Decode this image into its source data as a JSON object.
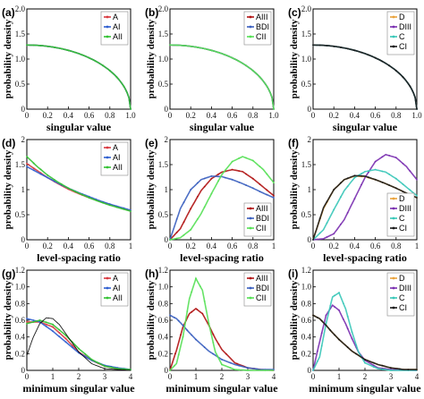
{
  "figure": {
    "ylabel": "probability density",
    "xlabels": {
      "row1": "singular value",
      "row2": "level-spacing ratio",
      "row3": "minimum singular value"
    }
  },
  "colors": {
    "A": "#d9383f",
    "AI": "#2f5fd0",
    "AII": "#33c233",
    "AIII": "#b01212",
    "BDI": "#3a5fbf",
    "CII": "#55e055",
    "D": "#e9a23b",
    "DIII": "#7a2fb0",
    "C": "#39c7b8",
    "CI": "#1a1a1a"
  },
  "chart_data": [
    {
      "id": "a",
      "label": "(a)",
      "type": "line",
      "xlabel": "singular value",
      "ylabel": "probability density",
      "xlim": [
        0,
        1
      ],
      "ylim": [
        0,
        2
      ],
      "xticks": [
        "0",
        "0.2",
        "0.4",
        "0.6",
        "0.8",
        "1.0"
      ],
      "yticks": [
        "0",
        "0.5",
        "1.0",
        "1.5",
        "2.0"
      ],
      "legend": [
        "A",
        "AI",
        "AII"
      ],
      "legend_position": "top-right",
      "series": [
        {
          "name": "A",
          "kind": "quarter",
          "amp": 1.28
        },
        {
          "name": "AI",
          "kind": "quarter",
          "amp": 1.28
        },
        {
          "name": "AII",
          "kind": "quarter",
          "amp": 1.28
        }
      ]
    },
    {
      "id": "b",
      "label": "(b)",
      "type": "line",
      "xlabel": "singular value",
      "ylabel": "probability density",
      "xlim": [
        0,
        1
      ],
      "ylim": [
        0,
        2
      ],
      "xticks": [
        "0",
        "0.2",
        "0.4",
        "0.6",
        "0.8",
        "1.0"
      ],
      "yticks": [
        "0",
        "0.5",
        "1.0",
        "1.5",
        "2.0"
      ],
      "legend": [
        "AIII",
        "BDI",
        "CII"
      ],
      "legend_position": "top-right",
      "series": [
        {
          "name": "AIII",
          "kind": "quarter",
          "amp": 1.28
        },
        {
          "name": "BDI",
          "kind": "quarter",
          "amp": 1.28
        },
        {
          "name": "CII",
          "kind": "quarter",
          "amp": 1.28
        }
      ]
    },
    {
      "id": "c",
      "label": "(c)",
      "type": "line",
      "xlabel": "singular value",
      "ylabel": "probability density",
      "xlim": [
        0,
        1
      ],
      "ylim": [
        0,
        2
      ],
      "xticks": [
        "0",
        "0.2",
        "0.4",
        "0.6",
        "0.8",
        "1.0"
      ],
      "yticks": [
        "0",
        "0.5",
        "1.0",
        "1.5",
        "2.0"
      ],
      "legend": [
        "D",
        "DIII",
        "C",
        "CI"
      ],
      "legend_position": "top-right",
      "series": [
        {
          "name": "D",
          "kind": "quarter",
          "amp": 1.28
        },
        {
          "name": "DIII",
          "kind": "quarter",
          "amp": 1.28
        },
        {
          "name": "C",
          "kind": "quarter",
          "amp": 1.28
        },
        {
          "name": "CI",
          "kind": "quarter",
          "amp": 1.28
        }
      ]
    },
    {
      "id": "d",
      "label": "(d)",
      "type": "line",
      "xlabel": "level-spacing ratio",
      "ylabel": "probability density",
      "xlim": [
        0,
        1
      ],
      "ylim": [
        0,
        2
      ],
      "xticks": [
        "0",
        "0.2",
        "0.4",
        "0.6",
        "0.8",
        "1"
      ],
      "yticks": [
        "0",
        "0.5",
        "1",
        "1.5",
        "2"
      ],
      "legend": [
        "A",
        "AI",
        "AII"
      ],
      "legend_position": "top-right",
      "series": [
        {
          "name": "A",
          "x": [
            0,
            0.1,
            0.2,
            0.3,
            0.4,
            0.5,
            0.6,
            0.7,
            0.8,
            0.9,
            1
          ],
          "y": [
            1.52,
            1.38,
            1.24,
            1.12,
            1.01,
            0.92,
            0.84,
            0.77,
            0.7,
            0.64,
            0.58
          ]
        },
        {
          "name": "AI",
          "x": [
            0,
            0.1,
            0.2,
            0.3,
            0.4,
            0.5,
            0.6,
            0.7,
            0.8,
            0.9,
            1
          ],
          "y": [
            1.46,
            1.35,
            1.24,
            1.13,
            1.03,
            0.94,
            0.86,
            0.78,
            0.71,
            0.65,
            0.59
          ]
        },
        {
          "name": "AII",
          "x": [
            0,
            0.1,
            0.2,
            0.3,
            0.4,
            0.5,
            0.6,
            0.7,
            0.8,
            0.9,
            1
          ],
          "y": [
            1.66,
            1.46,
            1.29,
            1.15,
            1.03,
            0.93,
            0.84,
            0.76,
            0.69,
            0.63,
            0.57
          ]
        }
      ]
    },
    {
      "id": "e",
      "label": "(e)",
      "type": "line",
      "xlabel": "level-spacing ratio",
      "ylabel": "probability density",
      "xlim": [
        0,
        1
      ],
      "ylim": [
        0,
        2
      ],
      "xticks": [
        "0",
        "0.2",
        "0.4",
        "0.6",
        "0.8",
        "1"
      ],
      "yticks": [
        "0",
        "0.5",
        "1",
        "1.5",
        "2"
      ],
      "legend": [
        "AIII",
        "BDI",
        "CII"
      ],
      "legend_position": "bottom-right",
      "series": [
        {
          "name": "AIII",
          "x": [
            0,
            0.1,
            0.2,
            0.3,
            0.4,
            0.5,
            0.6,
            0.7,
            0.8,
            0.9,
            1
          ],
          "y": [
            0,
            0.22,
            0.62,
            0.98,
            1.22,
            1.35,
            1.4,
            1.36,
            1.22,
            1.05,
            0.88
          ]
        },
        {
          "name": "BDI",
          "x": [
            0,
            0.1,
            0.2,
            0.3,
            0.4,
            0.5,
            0.6,
            0.7,
            0.8,
            0.9,
            1
          ],
          "y": [
            0,
            0.62,
            1.0,
            1.2,
            1.27,
            1.26,
            1.2,
            1.12,
            1.03,
            0.93,
            0.84
          ]
        },
        {
          "name": "CII",
          "x": [
            0,
            0.1,
            0.2,
            0.3,
            0.4,
            0.5,
            0.6,
            0.7,
            0.8,
            0.9,
            1
          ],
          "y": [
            0,
            0.04,
            0.2,
            0.52,
            0.92,
            1.3,
            1.56,
            1.66,
            1.58,
            1.4,
            1.14
          ]
        }
      ]
    },
    {
      "id": "f",
      "label": "(f)",
      "type": "line",
      "xlabel": "level-spacing ratio",
      "ylabel": "probability density",
      "xlim": [
        0,
        1
      ],
      "ylim": [
        0,
        2
      ],
      "xticks": [
        "0",
        "0.2",
        "0.4",
        "0.6",
        "0.8",
        "1"
      ],
      "yticks": [
        "0",
        "0.5",
        "1",
        "1.5",
        "2"
      ],
      "legend": [
        "D",
        "DIII",
        "C",
        "CI"
      ],
      "legend_position": "bottom-right",
      "series": [
        {
          "name": "D",
          "x": [
            0,
            0.1,
            0.2,
            0.3,
            0.4,
            0.5,
            0.6,
            0.7,
            0.8,
            0.9,
            1
          ],
          "y": [
            0,
            0.62,
            1.0,
            1.2,
            1.27,
            1.26,
            1.2,
            1.12,
            1.03,
            0.93,
            0.84
          ]
        },
        {
          "name": "DIII",
          "x": [
            0,
            0.1,
            0.2,
            0.3,
            0.4,
            0.5,
            0.6,
            0.7,
            0.8,
            0.9,
            1
          ],
          "y": [
            0,
            0.02,
            0.12,
            0.4,
            0.82,
            1.24,
            1.56,
            1.7,
            1.64,
            1.46,
            1.2
          ]
        },
        {
          "name": "C",
          "x": [
            0,
            0.1,
            0.2,
            0.3,
            0.4,
            0.5,
            0.6,
            0.7,
            0.8,
            0.9,
            1
          ],
          "y": [
            0,
            0.2,
            0.6,
            0.98,
            1.24,
            1.36,
            1.4,
            1.35,
            1.22,
            1.05,
            0.88
          ]
        },
        {
          "name": "CI",
          "x": [
            0,
            0.1,
            0.2,
            0.3,
            0.4,
            0.5,
            0.6,
            0.7,
            0.8,
            0.9,
            1
          ],
          "y": [
            0,
            0.64,
            1.0,
            1.2,
            1.28,
            1.27,
            1.2,
            1.12,
            1.03,
            0.93,
            0.84
          ]
        }
      ]
    },
    {
      "id": "g",
      "label": "(g)",
      "type": "line",
      "xlabel": "minimum singular value",
      "ylabel": "probability density",
      "xlim": [
        0,
        4
      ],
      "ylim": [
        0,
        1.2
      ],
      "xticks": [
        "0",
        "1",
        "2",
        "3",
        "4"
      ],
      "yticks": [
        "0",
        "0.2",
        "0.4",
        "0.6",
        "0.8",
        "1.0",
        "1.2"
      ],
      "legend": [
        "A",
        "AI",
        "AII"
      ],
      "legend_position": "top-right",
      "series": [
        {
          "name": "A",
          "x": [
            0,
            0.5,
            1,
            1.5,
            2,
            2.5,
            3,
            3.5,
            4
          ],
          "y": [
            0.58,
            0.58,
            0.52,
            0.38,
            0.22,
            0.12,
            0.05,
            0.02,
            0.01
          ]
        },
        {
          "name": "AI",
          "x": [
            0,
            0.5,
            1,
            1.5,
            2,
            2.5,
            3,
            3.5,
            4
          ],
          "y": [
            0.62,
            0.58,
            0.47,
            0.34,
            0.21,
            0.12,
            0.06,
            0.03,
            0.01
          ]
        },
        {
          "name": "AII",
          "x": [
            0,
            0.5,
            1,
            1.5,
            2,
            2.5,
            3,
            3.5,
            4
          ],
          "y": [
            0.56,
            0.6,
            0.55,
            0.42,
            0.26,
            0.13,
            0.05,
            0.02,
            0.01
          ]
        },
        {
          "name": "",
          "x": [
            0,
            0.25,
            0.5,
            0.75,
            1,
            1.25,
            1.5,
            2,
            2.5,
            3,
            3.5,
            4
          ],
          "y": [
            0.18,
            0.4,
            0.56,
            0.63,
            0.62,
            0.55,
            0.44,
            0.22,
            0.08,
            0.02,
            0.01,
            0
          ]
        }
      ]
    },
    {
      "id": "h",
      "label": "(h)",
      "type": "line",
      "xlabel": "minimum singular value",
      "ylabel": "probability density",
      "xlim": [
        0,
        4
      ],
      "ylim": [
        0,
        1.2
      ],
      "xticks": [
        "0",
        "1",
        "2",
        "3",
        "4"
      ],
      "yticks": [
        "0",
        "0.2",
        "0.4",
        "0.6",
        "0.8",
        "1.0",
        "1.2"
      ],
      "legend": [
        "AIII",
        "BDI",
        "CII"
      ],
      "legend_position": "top-right",
      "series": [
        {
          "name": "AIII",
          "x": [
            0,
            0.25,
            0.5,
            0.75,
            1,
            1.25,
            1.5,
            1.75,
            2,
            2.5,
            3,
            3.5,
            4
          ],
          "y": [
            0,
            0.24,
            0.52,
            0.68,
            0.74,
            0.68,
            0.54,
            0.38,
            0.25,
            0.09,
            0.03,
            0.01,
            0
          ]
        },
        {
          "name": "BDI",
          "x": [
            0,
            0.25,
            0.5,
            0.75,
            1,
            1.5,
            2,
            2.5,
            3,
            3.5,
            4
          ],
          "y": [
            0.66,
            0.62,
            0.54,
            0.45,
            0.37,
            0.23,
            0.13,
            0.07,
            0.03,
            0.01,
            0.01
          ]
        },
        {
          "name": "CII",
          "x": [
            0,
            0.25,
            0.5,
            0.75,
            1,
            1.25,
            1.5,
            1.75,
            2,
            2.5,
            3,
            4
          ],
          "y": [
            0,
            0.08,
            0.4,
            0.86,
            1.1,
            0.96,
            0.56,
            0.22,
            0.07,
            0.01,
            0,
            0
          ]
        }
      ]
    },
    {
      "id": "i",
      "label": "(i)",
      "type": "line",
      "xlabel": "minimum singular value",
      "ylabel": "probability density",
      "xlim": [
        0,
        4
      ],
      "ylim": [
        0,
        1.2
      ],
      "xticks": [
        "0",
        "1",
        "2",
        "3",
        "4"
      ],
      "yticks": [
        "0",
        "0.2",
        "0.4",
        "0.6",
        "0.8",
        "1.0",
        "1.2"
      ],
      "legend": [
        "D",
        "DIII",
        "C",
        "CI"
      ],
      "legend_position": "top-right",
      "series": [
        {
          "name": "D",
          "x": [
            0,
            0.25,
            0.5,
            0.75,
            1,
            1.5,
            2,
            2.5,
            3,
            3.5,
            4
          ],
          "y": [
            0.66,
            0.62,
            0.54,
            0.45,
            0.37,
            0.23,
            0.13,
            0.07,
            0.03,
            0.01,
            0.01
          ]
        },
        {
          "name": "DIII",
          "x": [
            0,
            0.25,
            0.5,
            0.75,
            1,
            1.25,
            1.5,
            1.75,
            2,
            2.5,
            3,
            4
          ],
          "y": [
            0,
            0.34,
            0.66,
            0.78,
            0.72,
            0.56,
            0.38,
            0.22,
            0.12,
            0.03,
            0.01,
            0
          ]
        },
        {
          "name": "C",
          "x": [
            0,
            0.25,
            0.5,
            0.75,
            1,
            1.25,
            1.5,
            1.75,
            2,
            2.5,
            3,
            4
          ],
          "y": [
            0,
            0.16,
            0.56,
            0.88,
            0.93,
            0.74,
            0.46,
            0.22,
            0.09,
            0.02,
            0,
            0
          ]
        },
        {
          "name": "CI",
          "x": [
            0,
            0.25,
            0.5,
            0.75,
            1,
            1.5,
            2,
            2.5,
            3,
            3.5,
            4
          ],
          "y": [
            0.66,
            0.62,
            0.54,
            0.45,
            0.37,
            0.23,
            0.13,
            0.07,
            0.03,
            0.01,
            0.01
          ]
        }
      ]
    }
  ]
}
